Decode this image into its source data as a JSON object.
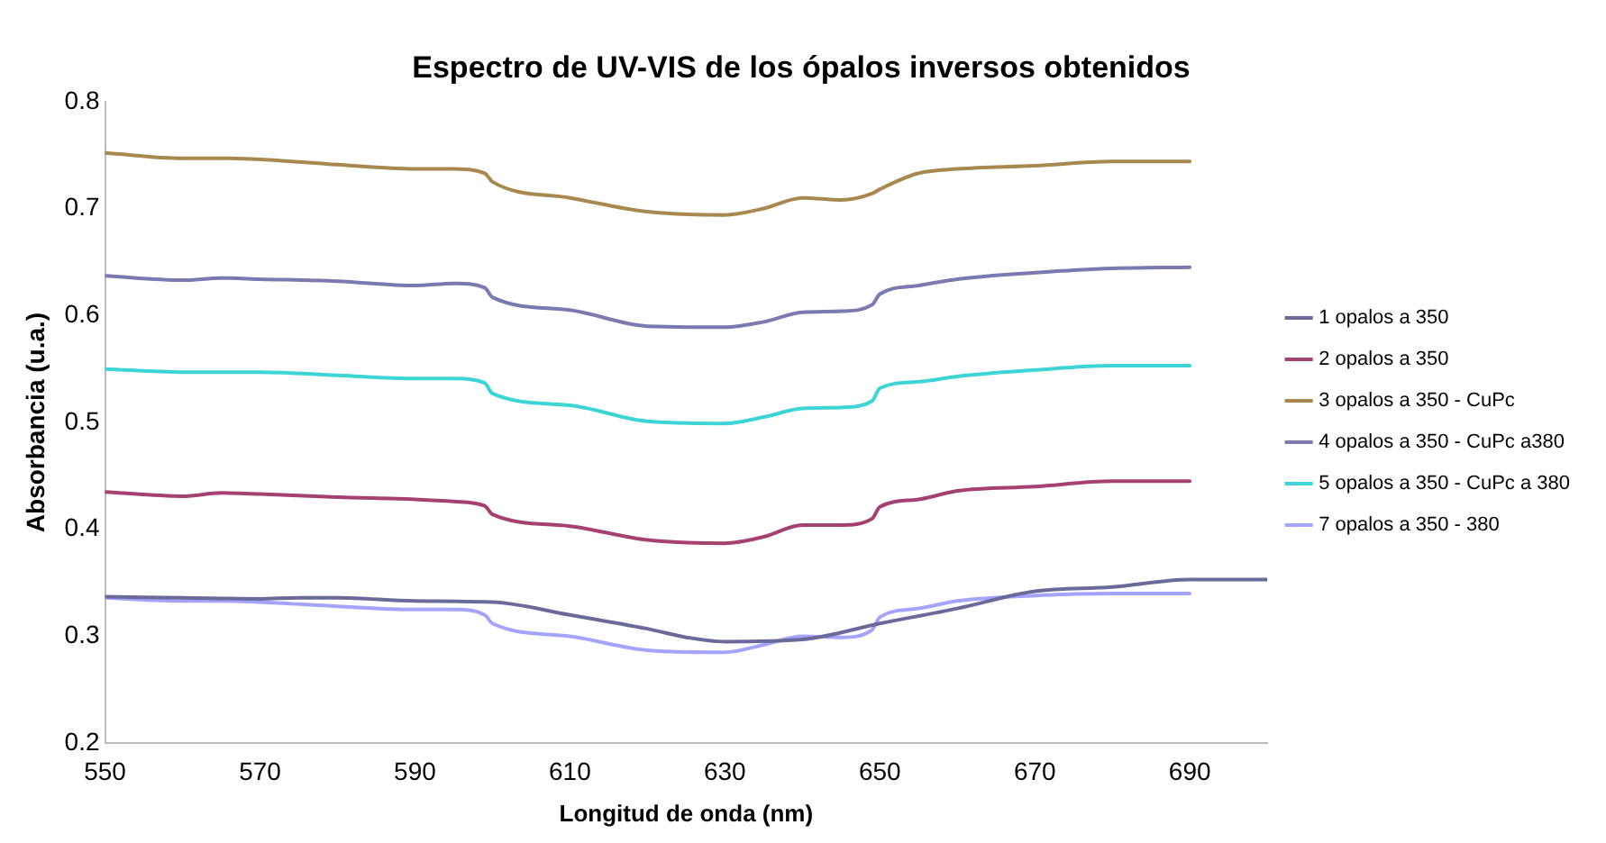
{
  "chart_data": {
    "type": "line",
    "title": "Espectro de UV-VIS de los ópalos inversos obtenidos",
    "xlabel": "Longitud de onda (nm)",
    "ylabel": "Absorbancia (u.a.)",
    "x": [
      550,
      560,
      565,
      570,
      580,
      590,
      595,
      599,
      600,
      610,
      620,
      630,
      635,
      640,
      645,
      649,
      650,
      655,
      660,
      670,
      680,
      690
    ],
    "xlim": [
      550,
      700
    ],
    "xticks": [
      550,
      570,
      590,
      610,
      630,
      650,
      670,
      690
    ],
    "ylim": [
      0.2,
      0.8
    ],
    "yticks": [
      0.2,
      0.3,
      0.4,
      0.5,
      0.6,
      0.7,
      0.8
    ],
    "grid": false,
    "legend": "right",
    "marker": "none",
    "line_style": "solid",
    "series": [
      {
        "name": "1 opalos a 350",
        "color": "#6a6a9a",
        "x": [
          550,
          560,
          570,
          575,
          580,
          590,
          600,
          610,
          620,
          625,
          630,
          640,
          650,
          660,
          670,
          680,
          690,
          700
        ],
        "values": [
          0.337,
          0.336,
          0.335,
          0.336,
          0.336,
          0.333,
          0.332,
          0.32,
          0.307,
          0.299,
          0.295,
          0.297,
          0.312,
          0.326,
          0.342,
          0.346,
          0.353,
          0.353
        ]
      },
      {
        "name": "2 opalos a 350",
        "color": "#a5416f",
        "values": [
          0.435,
          0.431,
          0.434,
          0.433,
          0.43,
          0.428,
          0.426,
          0.422,
          0.414,
          0.403,
          0.39,
          0.387,
          0.393,
          0.404,
          0.404,
          0.41,
          0.421,
          0.428,
          0.436,
          0.44,
          0.445,
          0.445
        ]
      },
      {
        "name": "3 opalos a 350 - CuPc",
        "color": "#a8884e",
        "values": [
          0.752,
          0.747,
          0.747,
          0.746,
          0.741,
          0.737,
          0.737,
          0.733,
          0.725,
          0.71,
          0.697,
          0.694,
          0.7,
          0.71,
          0.708,
          0.714,
          0.718,
          0.733,
          0.737,
          0.74,
          0.744,
          0.744
        ]
      },
      {
        "name": "4 opalos a 350 - CuPc a380",
        "color": "#7a7ab0",
        "values": [
          0.637,
          0.633,
          0.635,
          0.634,
          0.632,
          0.628,
          0.63,
          0.626,
          0.617,
          0.605,
          0.59,
          0.589,
          0.594,
          0.603,
          0.604,
          0.61,
          0.62,
          0.628,
          0.634,
          0.64,
          0.644,
          0.645
        ]
      },
      {
        "name": "5 opalos a 350 - CuPc a 380",
        "color": "#3cd4d4",
        "values": [
          0.55,
          0.547,
          0.547,
          0.547,
          0.544,
          0.541,
          0.541,
          0.537,
          0.527,
          0.516,
          0.501,
          0.499,
          0.505,
          0.513,
          0.514,
          0.52,
          0.532,
          0.538,
          0.543,
          0.549,
          0.553,
          0.553
        ]
      },
      {
        "name": "7 opalos a 350 - 380",
        "color": "#a4a4ff",
        "values": [
          0.336,
          0.333,
          0.333,
          0.332,
          0.328,
          0.325,
          0.325,
          0.32,
          0.312,
          0.3,
          0.287,
          0.285,
          0.292,
          0.3,
          0.299,
          0.306,
          0.318,
          0.326,
          0.333,
          0.338,
          0.34,
          0.34
        ]
      }
    ]
  }
}
